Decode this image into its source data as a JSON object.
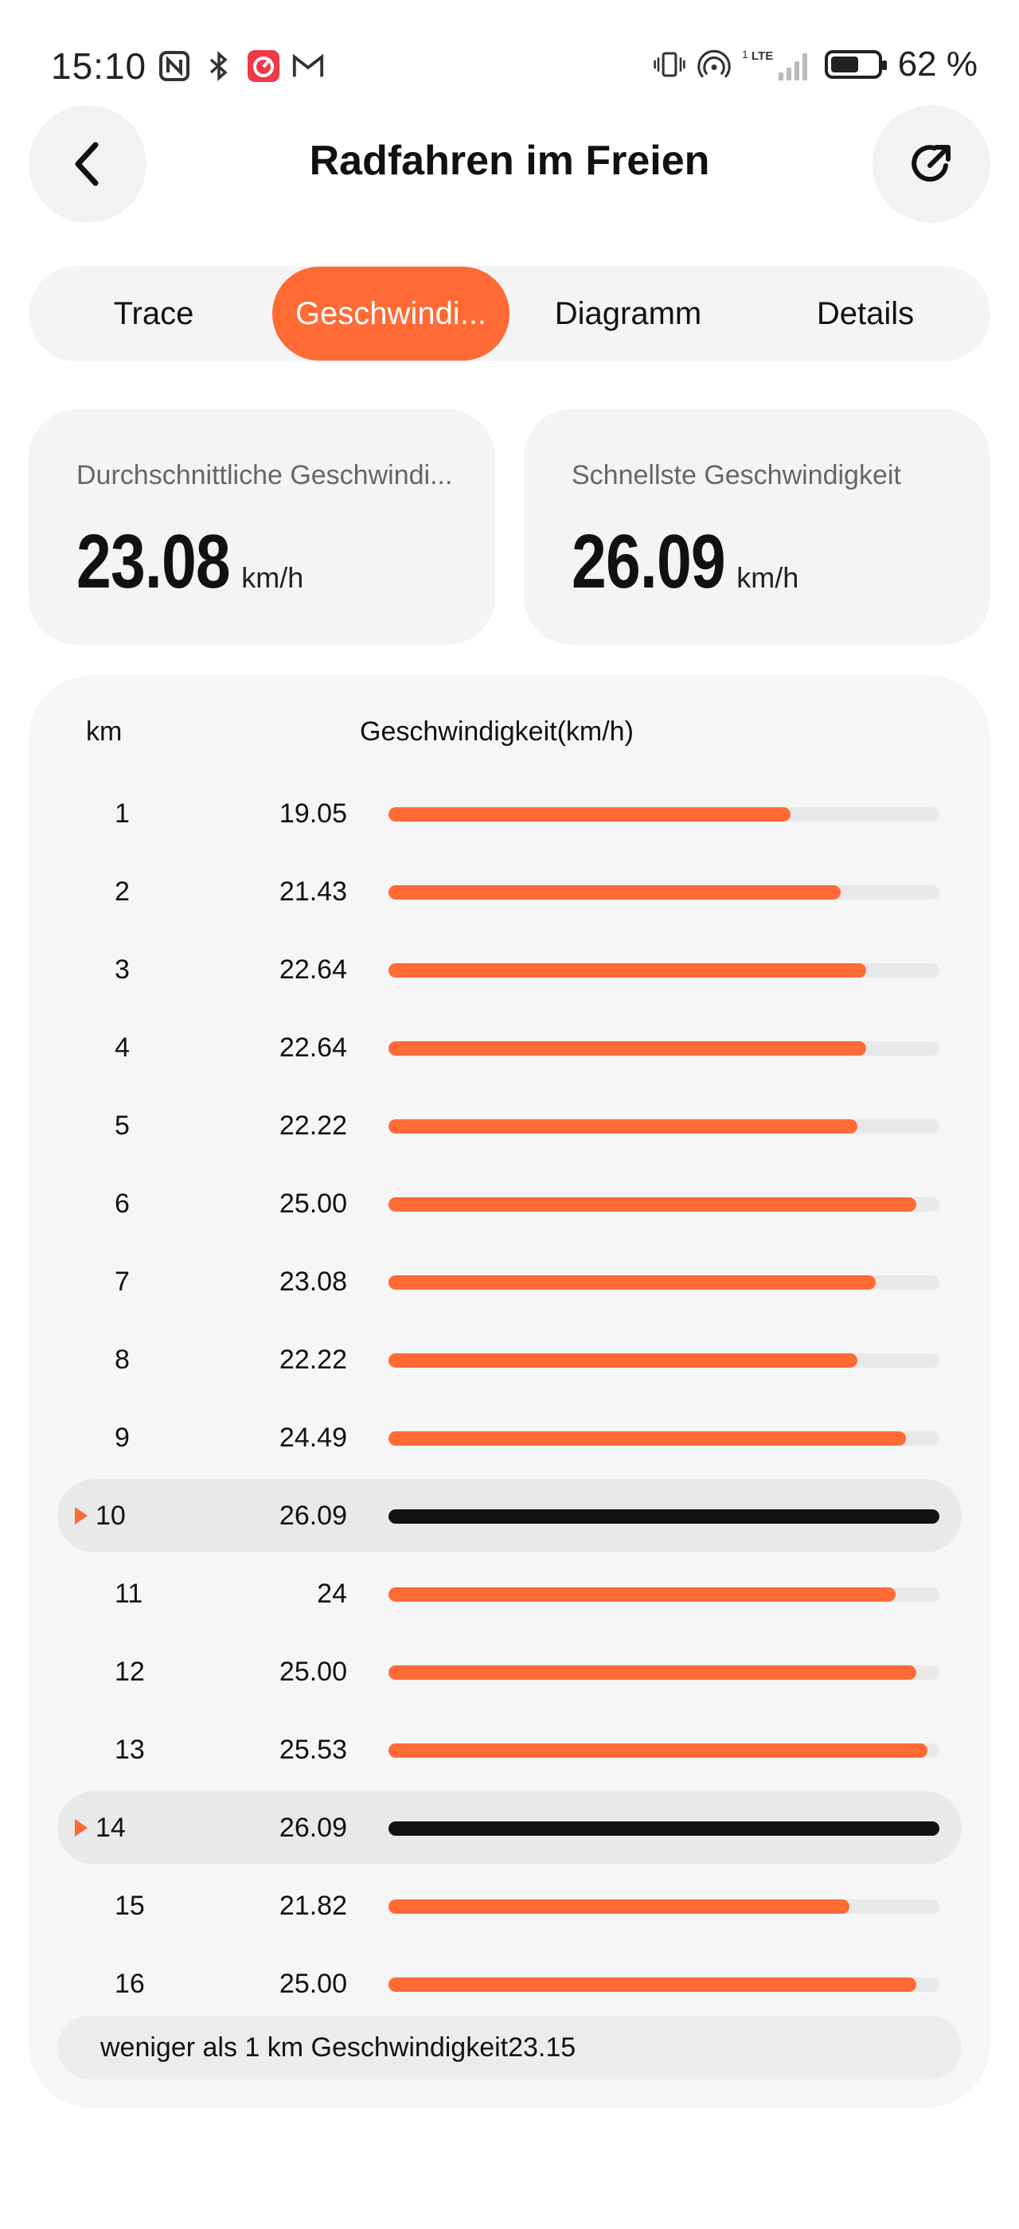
{
  "status_bar": {
    "time": "15:10",
    "left_icons": [
      "nfc-icon",
      "bluetooth-icon",
      "speedometer-app-icon",
      "gmail-icon"
    ],
    "right_icons": [
      "vibrate-icon",
      "hotspot-icon",
      "lte-signal-icon"
    ],
    "network": "LTE",
    "sim": "1",
    "battery_percent": "62 %",
    "battery_level": 0.62
  },
  "header": {
    "title": "Radfahren im Freien",
    "back_icon": "chevron-left-icon",
    "share_icon": "share-arrow-icon"
  },
  "tabs": [
    {
      "label": "Trace",
      "active": false
    },
    {
      "label": "Geschwindi...",
      "active": true
    },
    {
      "label": "Diagramm",
      "active": false
    },
    {
      "label": "Details",
      "active": false
    }
  ],
  "stats": {
    "average": {
      "label": "Durchschnittliche Geschwindi...",
      "value": "23.08",
      "unit": "km/h"
    },
    "fastest": {
      "label": "Schnellste Geschwindigkeit",
      "value": "26.09",
      "unit": "km/h"
    }
  },
  "splits": {
    "col_km": "km",
    "col_speed": "Geschwindigkeit(km/h)",
    "max_value": 26.09,
    "rows": [
      {
        "km": "1",
        "speed": "19.05",
        "value": 19.05,
        "fastest": false
      },
      {
        "km": "2",
        "speed": "21.43",
        "value": 21.43,
        "fastest": false
      },
      {
        "km": "3",
        "speed": "22.64",
        "value": 22.64,
        "fastest": false
      },
      {
        "km": "4",
        "speed": "22.64",
        "value": 22.64,
        "fastest": false
      },
      {
        "km": "5",
        "speed": "22.22",
        "value": 22.22,
        "fastest": false
      },
      {
        "km": "6",
        "speed": "25.00",
        "value": 25.0,
        "fastest": false
      },
      {
        "km": "7",
        "speed": "23.08",
        "value": 23.08,
        "fastest": false
      },
      {
        "km": "8",
        "speed": "22.22",
        "value": 22.22,
        "fastest": false
      },
      {
        "km": "9",
        "speed": "24.49",
        "value": 24.49,
        "fastest": false
      },
      {
        "km": "10",
        "speed": "26.09",
        "value": 26.09,
        "fastest": true
      },
      {
        "km": "11",
        "speed": "24",
        "value": 24,
        "fastest": false
      },
      {
        "km": "12",
        "speed": "25.00",
        "value": 25.0,
        "fastest": false
      },
      {
        "km": "13",
        "speed": "25.53",
        "value": 25.53,
        "fastest": false
      },
      {
        "km": "14",
        "speed": "26.09",
        "value": 26.09,
        "fastest": true
      },
      {
        "km": "15",
        "speed": "21.82",
        "value": 21.82,
        "fastest": false
      },
      {
        "km": "16",
        "speed": "25.00",
        "value": 25.0,
        "fastest": false
      }
    ],
    "footer": "weniger als 1 km  Geschwindigkeit23.15"
  },
  "colors": {
    "accent": "#ff6a35",
    "fastest_bar": "#111111",
    "track": "#e8e8e8"
  }
}
